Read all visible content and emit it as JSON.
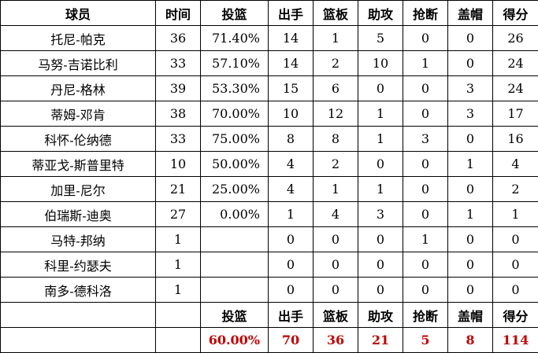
{
  "headers": [
    "球员",
    "时间",
    "投篮",
    "出手",
    "篮板",
    "助攻",
    "抢断",
    "盖帽",
    "得分"
  ],
  "rows": [
    [
      "托尼-帕克",
      "36",
      "71.40%",
      "14",
      "1",
      "5",
      "0",
      "0",
      "26"
    ],
    [
      "马努-吉诺比利",
      "33",
      "57.10%",
      "14",
      "2",
      "10",
      "1",
      "0",
      "24"
    ],
    [
      "丹尼-格林",
      "39",
      "53.30%",
      "15",
      "6",
      "0",
      "0",
      "3",
      "24"
    ],
    [
      "蒂姆-邓肯",
      "38",
      "70.00%",
      "10",
      "12",
      "1",
      "0",
      "3",
      "17"
    ],
    [
      "科怀-伦纳德",
      "33",
      "75.00%",
      "8",
      "8",
      "1",
      "3",
      "0",
      "16"
    ],
    [
      "蒂亚戈-斯普里特",
      "10",
      "50.00%",
      "4",
      "2",
      "0",
      "0",
      "1",
      "4"
    ],
    [
      "加里-尼尔",
      "21",
      "25.00%",
      "4",
      "1",
      "1",
      "0",
      "0",
      "2"
    ],
    [
      "伯瑞斯-迪奥",
      "27",
      "0.00%",
      "1",
      "4",
      "3",
      "0",
      "1",
      "1"
    ],
    [
      "马特-邦纳",
      "1",
      "",
      "0",
      "0",
      "0",
      "1",
      "0",
      "0"
    ],
    [
      "科里-约瑟夫",
      "1",
      "",
      "0",
      "0",
      "0",
      "0",
      "0",
      "0"
    ],
    [
      "南多-德科洛",
      "1",
      "",
      "0",
      "0",
      "0",
      "0",
      "0",
      "0"
    ]
  ],
  "totals_header": [
    "",
    "",
    "投篮",
    "出手",
    "篮板",
    "助攻",
    "抢断",
    "盖帽",
    "得分"
  ],
  "totals": [
    "",
    "",
    "60.00%",
    "70",
    "36",
    "21",
    "5",
    "8",
    "114"
  ],
  "colors": {
    "totals": "#c00000"
  }
}
